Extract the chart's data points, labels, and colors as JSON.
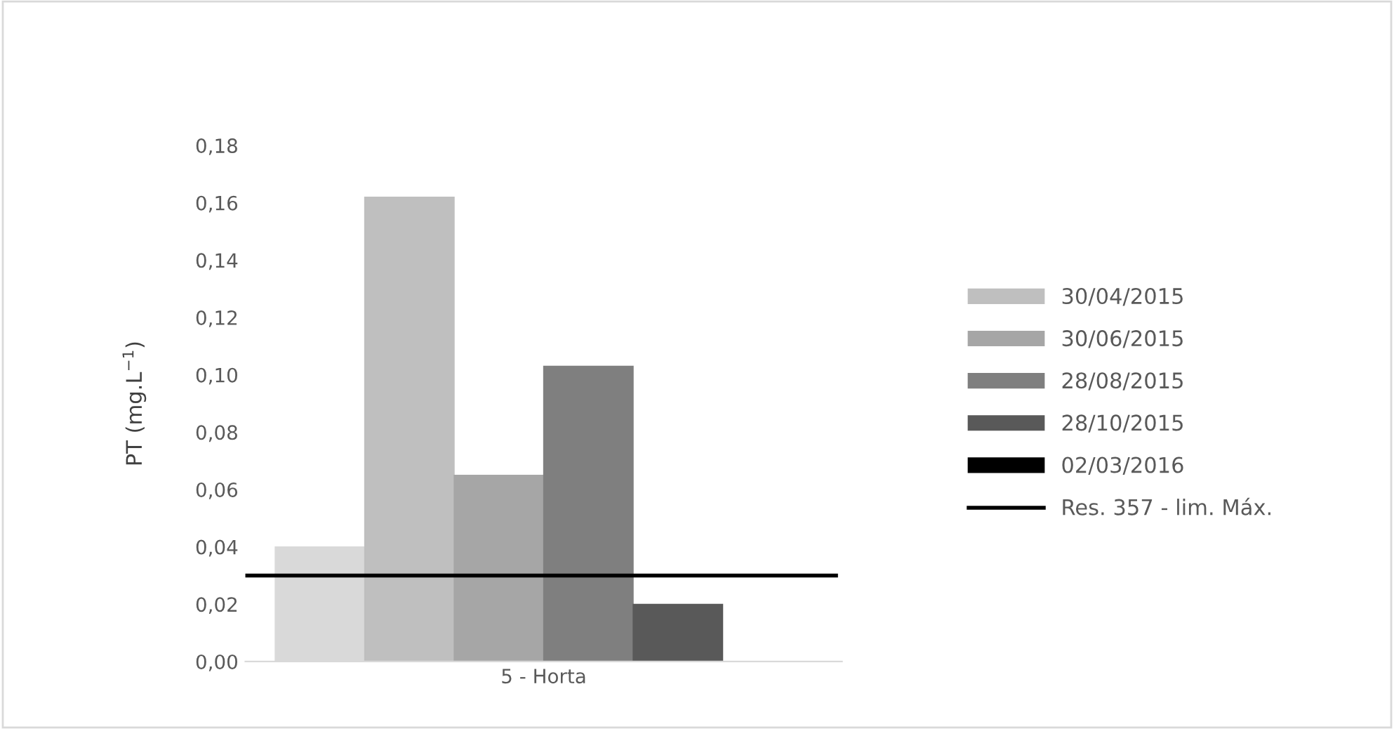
{
  "chart_data": {
    "type": "bar",
    "ylabel": "PT (mg.L$^{−1}$)",
    "categories": [
      "5 - Horta"
    ],
    "series": [
      {
        "color": "#d9d9d9",
        "values": [
          0.04
        ]
      },
      {
        "name": "30/04/2015",
        "color": "#bfbfbf",
        "values": [
          0.162
        ]
      },
      {
        "name": "30/06/2015",
        "color": "#a6a6a6",
        "values": [
          0.065
        ]
      },
      {
        "name": "28/08/2015",
        "color": "#7f7f7f",
        "values": [
          0.103
        ]
      },
      {
        "name": "28/10/2015",
        "color": "#595959",
        "values": [
          0.02
        ]
      },
      {
        "name": "02/03/2016",
        "color": "#000000",
        "values": [
          null
        ]
      }
    ],
    "ref_lines": [
      {
        "axis": "y",
        "value": 0.03,
        "label": "Res. 357 - lim. Máx.",
        "color": "#000000"
      }
    ],
    "ylim": [
      0,
      0.18
    ],
    "yticks": [
      {
        "value": 0,
        "label": "0,00"
      },
      {
        "value": 0.02,
        "label": "0,02"
      },
      {
        "value": 0.04,
        "label": "0,04"
      },
      {
        "value": 0.06,
        "label": "0,06"
      },
      {
        "value": 0.08,
        "label": "0,08"
      },
      {
        "value": 0.1,
        "label": "0,10"
      },
      {
        "value": 0.12,
        "label": "0,12"
      },
      {
        "value": 0.14,
        "label": "0,14"
      },
      {
        "value": 0.16,
        "label": "0,16"
      },
      {
        "value": 0.18,
        "label": "0,18"
      }
    ],
    "grid": false,
    "legend": "right"
  }
}
